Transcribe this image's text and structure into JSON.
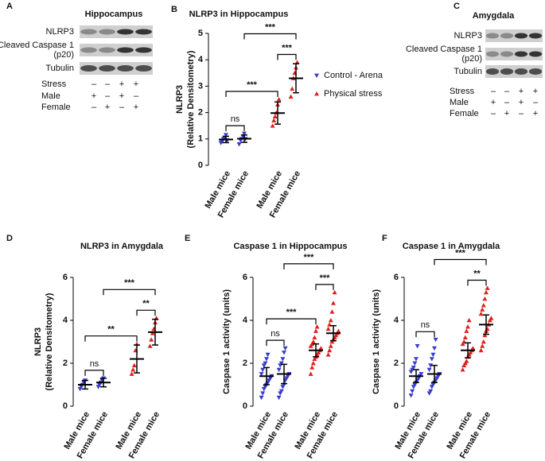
{
  "blots": [
    {
      "letter": "A",
      "title": "Hippocampus",
      "bands": [
        {
          "lines": [
            "NLRP3"
          ]
        },
        {
          "lines": [
            "Cleaved  Caspase 1",
            "(p20)"
          ]
        },
        {
          "lines": [
            "Tubulin"
          ]
        }
      ],
      "conditions": [
        {
          "label": "Stress",
          "marks": [
            "–",
            "–",
            "+",
            "+"
          ]
        },
        {
          "label": "Male",
          "marks": [
            "+",
            "–",
            "+",
            "–"
          ]
        },
        {
          "label": "Female",
          "marks": [
            "–",
            "+",
            "–",
            "+"
          ]
        }
      ]
    },
    {
      "letter": "C",
      "title": "Amygdala",
      "bands": [
        {
          "lines": [
            "NLRP3"
          ]
        },
        {
          "lines": [
            "Cleaved Caspase 1",
            "(p20)"
          ]
        },
        {
          "lines": [
            "Tubulin"
          ]
        }
      ],
      "conditions": [
        {
          "label": "Stress",
          "marks": [
            "–",
            "–",
            "+",
            "+"
          ]
        },
        {
          "label": "Male",
          "marks": [
            "+",
            "–",
            "+",
            "–"
          ]
        },
        {
          "label": "Female",
          "marks": [
            "–",
            "+",
            "–",
            "+"
          ]
        }
      ]
    }
  ],
  "chart_data": [
    {
      "type": "dot",
      "letter": "B",
      "title": "NLRP3 in Hippocampus",
      "ylabel": [
        "NLRP3",
        "(Relative Densitometry)"
      ],
      "categories": [
        "Male mice",
        "Female mice",
        "Male mice",
        "Female mice"
      ],
      "ylim": [
        0,
        5
      ],
      "yticks": [
        0,
        1,
        2,
        3,
        4,
        5
      ],
      "legend": [
        {
          "name": "Control - Arena",
          "color": "#3a3ad0",
          "marker": "down"
        },
        {
          "name": "Physical stress",
          "color": "#e0201c",
          "marker": "up"
        }
      ],
      "groups": [
        {
          "color": "#3a3ad0",
          "marker": "down",
          "points": [
            0.85,
            0.9,
            1.0,
            1.05,
            1.15,
            0.95
          ],
          "mean": 0.98,
          "error": 0.12
        },
        {
          "color": "#3a3ad0",
          "marker": "down",
          "points": [
            0.8,
            0.95,
            1.0,
            1.1,
            1.2,
            1.0
          ],
          "mean": 1.01,
          "error": 0.14
        },
        {
          "color": "#e0201c",
          "marker": "up",
          "points": [
            1.5,
            1.7,
            1.85,
            2.0,
            2.3,
            2.5
          ],
          "mean": 1.98,
          "error": 0.42
        },
        {
          "color": "#e0201c",
          "marker": "up",
          "points": [
            2.6,
            2.9,
            3.3,
            3.5,
            3.7,
            3.9
          ],
          "mean": 3.3,
          "error": 0.55
        }
      ],
      "brackets": [
        {
          "from": 0,
          "to": 1,
          "label": "ns"
        },
        {
          "from": 0,
          "to": 2,
          "label": "***"
        },
        {
          "from": 2,
          "to": 3,
          "label": "***"
        },
        {
          "from": 1,
          "to": 3,
          "label": "***"
        }
      ]
    },
    {
      "type": "dot",
      "letter": "D",
      "title": "NLRP3 in Amygdala",
      "ylabel": [
        "NLRP3",
        "(Relative Densitometry)"
      ],
      "categories": [
        "Male mice",
        "Female mice",
        "Male mice",
        "Female mice"
      ],
      "ylim": [
        0,
        6
      ],
      "yticks": [
        0,
        2,
        4,
        6
      ],
      "groups": [
        {
          "color": "#3a3ad0",
          "marker": "down",
          "points": [
            0.8,
            0.9,
            1.0,
            1.1,
            1.2
          ],
          "mean": 1.0,
          "error": 0.2
        },
        {
          "color": "#3a3ad0",
          "marker": "down",
          "points": [
            0.9,
            1.0,
            1.1,
            1.2,
            1.3
          ],
          "mean": 1.1,
          "error": 0.2
        },
        {
          "color": "#e0201c",
          "marker": "up",
          "points": [
            1.5,
            1.7,
            1.9,
            2.6,
            2.9
          ],
          "mean": 2.2,
          "error": 0.65
        },
        {
          "color": "#e0201c",
          "marker": "up",
          "points": [
            2.8,
            3.1,
            3.4,
            3.6,
            3.9,
            4.1
          ],
          "mean": 3.45,
          "error": 0.6
        }
      ],
      "brackets": [
        {
          "from": 0,
          "to": 1,
          "label": "ns"
        },
        {
          "from": 0,
          "to": 2,
          "label": "**"
        },
        {
          "from": 2,
          "to": 3,
          "label": "**"
        },
        {
          "from": 1,
          "to": 3,
          "label": "***"
        }
      ]
    },
    {
      "type": "dot",
      "letter": "E",
      "title": "Caspase 1 in Hippocampus",
      "ylabel": [
        "Caspase 1 activity (units)"
      ],
      "categories": [
        "Male mice",
        "Female mice",
        "Male mice",
        "Female mice"
      ],
      "ylim": [
        0,
        6
      ],
      "yticks": [
        0,
        2,
        4,
        6
      ],
      "groups": [
        {
          "color": "#3a3ad0",
          "marker": "down",
          "points": [
            0.4,
            0.6,
            0.8,
            0.9,
            1.0,
            1.1,
            1.2,
            1.3,
            1.4,
            1.5,
            1.7,
            1.9,
            2.0,
            2.2,
            2.4
          ],
          "mean": 1.4,
          "error": 0.4
        },
        {
          "color": "#3a3ad0",
          "marker": "down",
          "points": [
            0.4,
            0.6,
            0.7,
            0.9,
            1.0,
            1.2,
            1.3,
            1.4,
            1.5,
            1.7,
            1.9,
            2.0,
            2.2,
            2.5,
            2.7
          ],
          "mean": 1.5,
          "error": 0.45
        },
        {
          "color": "#e0201c",
          "marker": "up",
          "points": [
            1.5,
            1.8,
            2.0,
            2.2,
            2.3,
            2.4,
            2.5,
            2.6,
            2.7,
            2.8,
            2.9,
            3.0,
            3.2,
            3.5,
            3.7
          ],
          "mean": 2.6,
          "error": 0.3
        },
        {
          "color": "#e0201c",
          "marker": "up",
          "points": [
            2.4,
            2.6,
            2.8,
            3.0,
            3.1,
            3.2,
            3.3,
            3.4,
            3.5,
            3.6,
            3.8,
            4.0,
            4.4,
            4.8,
            5.3
          ],
          "mean": 3.4,
          "error": 0.35
        }
      ],
      "brackets": [
        {
          "from": 0,
          "to": 1,
          "label": "ns"
        },
        {
          "from": 0,
          "to": 2,
          "label": "***"
        },
        {
          "from": 2,
          "to": 3,
          "label": "***"
        },
        {
          "from": 1,
          "to": 3,
          "label": "***"
        }
      ]
    },
    {
      "type": "dot",
      "letter": "F",
      "title": "Caspase 1 in Amygdala",
      "ylabel": [
        "Caspase 1 activity (units)"
      ],
      "categories": [
        "Male mice",
        "Female mice",
        "Male mice",
        "Female mice"
      ],
      "ylim": [
        0,
        6
      ],
      "yticks": [
        0,
        2,
        4,
        6
      ],
      "groups": [
        {
          "color": "#3a3ad0",
          "marker": "down",
          "points": [
            0.5,
            0.7,
            0.9,
            1.0,
            1.1,
            1.2,
            1.3,
            1.4,
            1.5,
            1.6,
            1.7,
            1.8,
            2.0,
            2.2,
            2.8
          ],
          "mean": 1.4,
          "error": 0.3
        },
        {
          "color": "#3a3ad0",
          "marker": "down",
          "points": [
            0.6,
            0.7,
            0.9,
            1.0,
            1.1,
            1.2,
            1.3,
            1.4,
            1.5,
            1.7,
            1.9,
            2.2,
            2.4,
            2.7,
            3.1
          ],
          "mean": 1.5,
          "error": 0.4
        },
        {
          "color": "#e0201c",
          "marker": "up",
          "points": [
            1.7,
            1.9,
            2.0,
            2.1,
            2.3,
            2.4,
            2.5,
            2.6,
            2.7,
            2.9,
            3.0,
            3.2,
            3.5,
            3.7,
            4.0
          ],
          "mean": 2.6,
          "error": 0.35
        },
        {
          "color": "#e0201c",
          "marker": "up",
          "points": [
            2.6,
            2.8,
            3.0,
            3.3,
            3.5,
            3.6,
            3.8,
            4.0,
            4.1,
            4.3,
            4.5,
            4.7,
            5.0,
            5.3,
            5.5
          ],
          "mean": 3.8,
          "error": 0.45
        }
      ],
      "brackets": [
        {
          "from": 0,
          "to": 1,
          "label": "ns"
        },
        {
          "from": 2,
          "to": 3,
          "label": "**"
        },
        {
          "from": 1,
          "to": 3,
          "label": "***"
        }
      ]
    }
  ]
}
